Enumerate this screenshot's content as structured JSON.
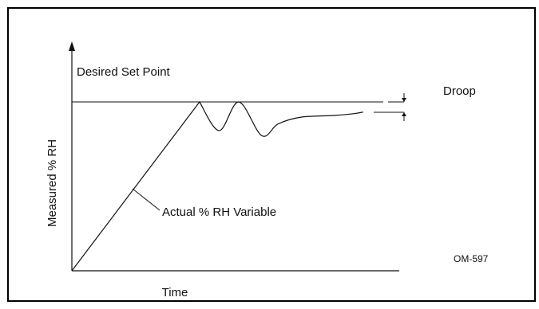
{
  "chart_data": {
    "type": "line",
    "title": "",
    "xlabel": "Time",
    "ylabel": "Measured % RH",
    "grid": false,
    "legend": "none",
    "series": [
      {
        "points": [
          [
            0.0,
            0.0
          ],
          [
            0.39,
            1.0
          ],
          [
            0.45,
            0.83
          ],
          [
            0.51,
            1.0
          ],
          [
            0.58,
            0.8
          ],
          [
            0.63,
            0.87
          ],
          [
            0.7,
            0.91
          ],
          [
            0.8,
            0.92
          ],
          [
            0.86,
            0.93
          ],
          [
            0.89,
            0.94
          ]
        ]
      }
    ],
    "annotations": {
      "set_point": "Desired Set Point",
      "droop": "Droop",
      "variable": "Actual % RH Variable",
      "figure_id": "OM-597"
    },
    "colors": {
      "line": "#111111",
      "frame": "#000000",
      "background": "#ffffff"
    }
  }
}
